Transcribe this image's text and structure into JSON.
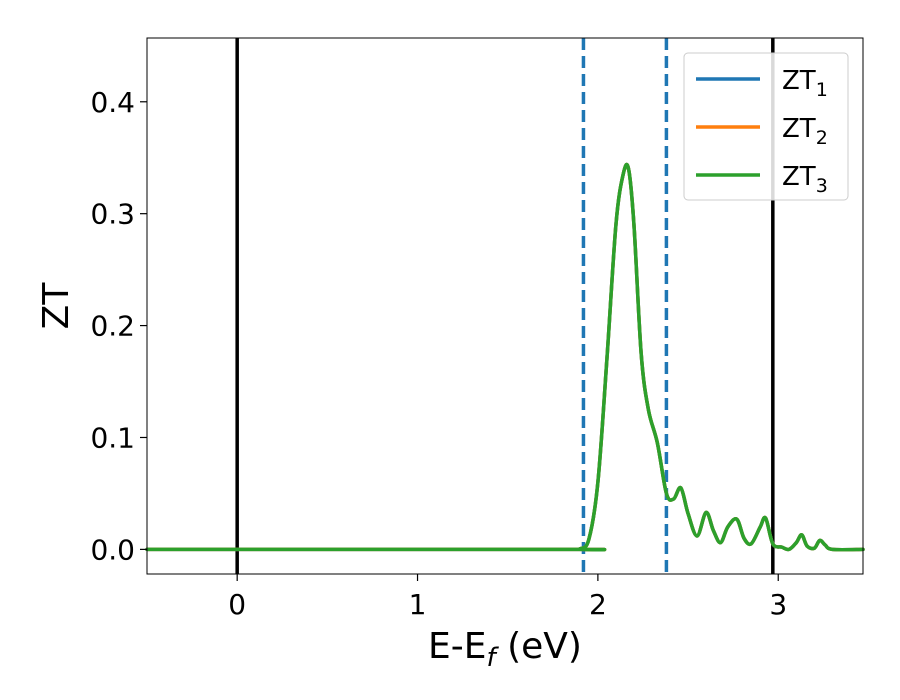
{
  "chart_data": {
    "type": "line",
    "xlabel_main": "E-E",
    "xlabel_sub": "f",
    "xlabel_unit": " (eV)",
    "ylabel": "ZT",
    "xlim": [
      -0.5,
      3.47
    ],
    "ylim": [
      -0.022,
      0.457
    ],
    "xticks": [
      {
        "value": 0,
        "label": "0"
      },
      {
        "value": 1,
        "label": "1"
      },
      {
        "value": 2,
        "label": "2"
      },
      {
        "value": 3,
        "label": "3"
      }
    ],
    "yticks": [
      {
        "value": 0.0,
        "label": "0.0"
      },
      {
        "value": 0.1,
        "label": "0.1"
      },
      {
        "value": 0.2,
        "label": "0.2"
      },
      {
        "value": 0.3,
        "label": "0.3"
      },
      {
        "value": 0.4,
        "label": "0.4"
      }
    ],
    "vlines_solid": [
      0.0,
      2.97
    ],
    "vlines_dashed": [
      1.92,
      2.38
    ],
    "grid": false,
    "legend_placement": "top-right",
    "colors": {
      "line1": "#1f77b4",
      "line2": "#ff7f0e",
      "line3": "#2ca02c",
      "solid_vline": "#000000",
      "dashed_vline": "#1f77b4"
    },
    "series": [
      {
        "name": "ZT",
        "subscript": "1",
        "color": "#1f77b4",
        "x": [
          -0.5,
          1.85,
          1.9,
          1.95,
          2.0,
          2.05,
          2.1,
          2.14,
          2.17,
          2.2,
          2.24,
          2.28,
          2.33,
          2.38,
          2.42,
          2.46,
          2.5,
          2.55,
          2.6,
          2.64,
          2.68,
          2.72,
          2.77,
          2.81,
          2.85,
          2.9,
          2.93,
          2.97,
          3.02,
          3.06,
          3.1,
          3.13,
          3.16,
          3.2,
          3.23,
          3.26,
          3.3,
          3.47
        ],
        "y": [
          0.0,
          0.0,
          0.0005,
          0.009,
          0.06,
          0.17,
          0.29,
          0.335,
          0.34,
          0.29,
          0.175,
          0.125,
          0.095,
          0.05,
          0.045,
          0.055,
          0.032,
          0.012,
          0.033,
          0.017,
          0.006,
          0.02,
          0.027,
          0.01,
          0.005,
          0.02,
          0.028,
          0.005,
          0.002,
          0.0,
          0.006,
          0.013,
          0.003,
          0.001,
          0.008,
          0.004,
          0.0,
          0.0
        ]
      },
      {
        "name": "ZT",
        "subscript": "2",
        "color": "#ff7f0e",
        "x": [
          -0.5,
          1.85,
          1.9,
          1.95,
          2.0,
          2.05,
          2.1,
          2.14,
          2.17,
          2.2,
          2.24,
          2.28,
          2.33,
          2.38,
          2.42,
          2.46,
          2.5,
          2.55,
          2.6,
          2.64,
          2.68,
          2.72,
          2.77,
          2.81,
          2.85,
          2.9,
          2.93,
          2.97,
          3.02,
          3.06,
          3.1,
          3.13,
          3.16,
          3.2,
          3.23,
          3.26,
          3.3,
          3.47
        ],
        "y": [
          0.0,
          0.0,
          0.0005,
          0.009,
          0.06,
          0.17,
          0.29,
          0.335,
          0.34,
          0.29,
          0.175,
          0.125,
          0.095,
          0.05,
          0.045,
          0.055,
          0.032,
          0.012,
          0.033,
          0.017,
          0.006,
          0.02,
          0.027,
          0.01,
          0.005,
          0.02,
          0.028,
          0.005,
          0.002,
          0.0,
          0.006,
          0.013,
          0.003,
          0.001,
          0.008,
          0.004,
          0.0,
          0.0
        ]
      },
      {
        "name": "ZT",
        "subscript": "3",
        "color": "#2ca02c",
        "x": [
          -0.5,
          1.85,
          1.9,
          1.95,
          2.0,
          2.05,
          2.1,
          2.14,
          2.17,
          2.2,
          2.24,
          2.28,
          2.33,
          2.38,
          2.42,
          2.46,
          2.5,
          2.55,
          2.6,
          2.64,
          2.68,
          2.72,
          2.77,
          2.81,
          2.85,
          2.9,
          2.93,
          2.97,
          3.02,
          3.06,
          3.1,
          3.13,
          3.16,
          3.2,
          3.23,
          3.26,
          3.3,
          3.47
        ],
        "y": [
          0.0,
          0.0,
          0.0005,
          0.009,
          0.06,
          0.17,
          0.29,
          0.335,
          0.34,
          0.29,
          0.175,
          0.125,
          0.095,
          0.05,
          0.045,
          0.055,
          0.032,
          0.012,
          0.033,
          0.017,
          0.006,
          0.02,
          0.027,
          0.01,
          0.005,
          0.02,
          0.028,
          0.005,
          0.002,
          0.0,
          0.006,
          0.013,
          0.003,
          0.001,
          0.008,
          0.004,
          0.0,
          0.0
        ]
      }
    ]
  }
}
